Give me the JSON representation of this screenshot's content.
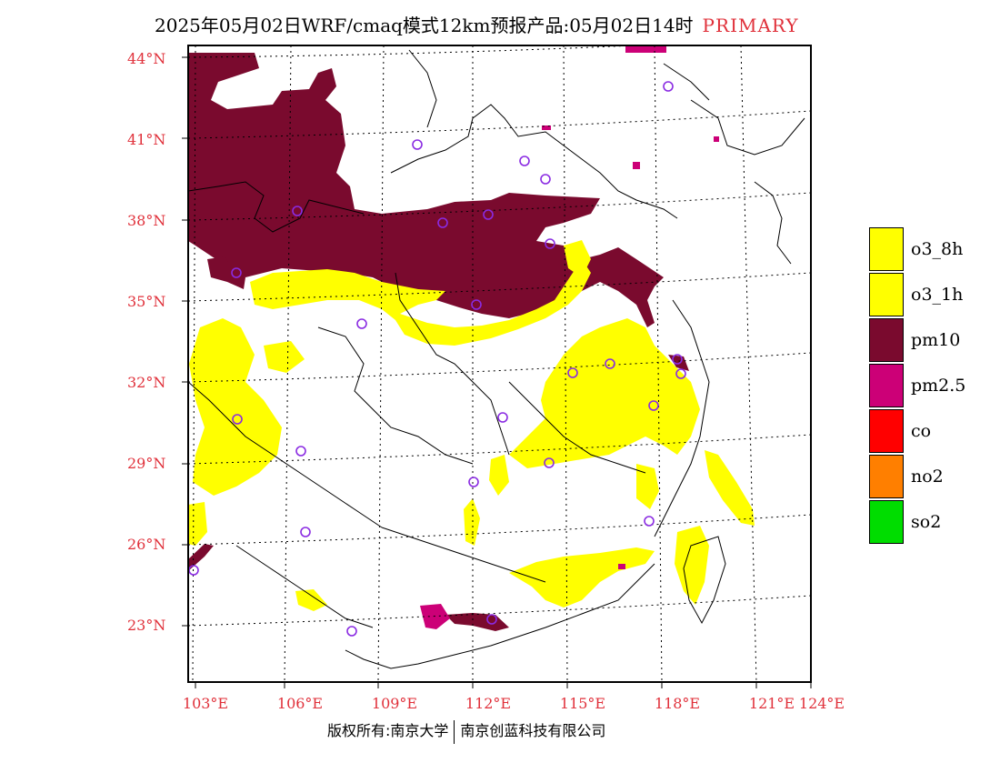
{
  "header": {
    "title": "2025年05月02日WRF/cmaq模式12km预报产品:05月02日14时",
    "tag": "PRIMARY"
  },
  "axes": {
    "lat_labels": [
      "44°N",
      "41°N",
      "38°N",
      "35°N",
      "32°N",
      "29°N",
      "26°N",
      "23°N"
    ],
    "lon_labels": [
      "103°E",
      "106°E",
      "109°E",
      "112°E",
      "115°E",
      "118°E",
      "121°E",
      "124°E"
    ]
  },
  "legend": {
    "items": [
      {
        "label": "o3_8h",
        "color": "#ffff00"
      },
      {
        "label": "o3_1h",
        "color": "#ffff00"
      },
      {
        "label": "pm10",
        "color": "#7a0a2e"
      },
      {
        "label": "pm2.5",
        "color": "#cc0077"
      },
      {
        "label": "co",
        "color": "#ff0000"
      },
      {
        "label": "no2",
        "color": "#ff7f00"
      },
      {
        "label": "so2",
        "color": "#00dd00"
      }
    ]
  },
  "footer": {
    "left": "版权所有:南京大学",
    "right": "南京创蓝科技有限公司"
  },
  "map_colors": {
    "o3": "#ffff00",
    "pm10": "#7a0a2e",
    "pm25": "#cc0077",
    "station": "#8a2be2"
  }
}
